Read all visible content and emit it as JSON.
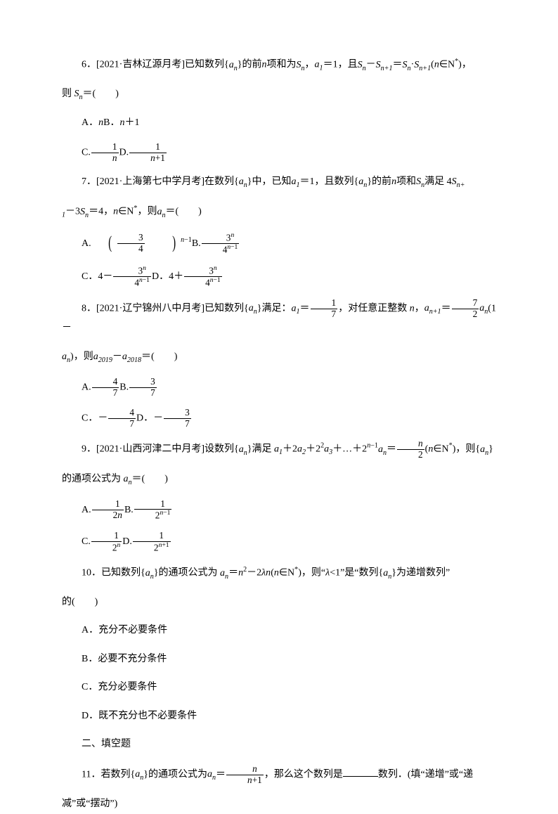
{
  "q6": {
    "stem": "6．[2021·吉林辽源月考]已知数列{<span class=\"italic\">a<sub>n</sub></span>}的前<span class=\"italic\">n</span>项和为<span class=\"italic\">S<sub>n</sub></span>，<span class=\"italic\">a</span><sub>1</sub>＝1，且<span class=\"italic\">S<sub>n</sub></span>－<span class=\"italic\">S<sub>n+1</sub></span>＝<span class=\"italic\">S<sub>n</sub></span>·<span class=\"italic\">S<sub>n+1</sub></span>(<span class=\"italic\">n</span>∈N<sup>*</sup>)，",
    "stem2": "则 <span class=\"italic\">S<sub>n</sub></span>＝(　　)",
    "optA": "A．<span class=\"italic\">n</span>B．<span class=\"italic\">n</span>＋1",
    "optC": "C.<span class=\"frac\"><span class=\"num\">1</span><span class=\"den italic\">n</span></span>D.<span class=\"frac\"><span class=\"num\">1</span><span class=\"den\"><span class=\"italic\">n</span>+1</span></span>"
  },
  "q7": {
    "stem": "7．[2021·上海第七中学月考]在数列{<span class=\"italic\">a<sub>n</sub></span>}中，已知<span class=\"italic\">a</span><sub>1</sub>＝1，且数列{<span class=\"italic\">a<sub>n</sub></span>}的前<span class=\"italic\">n</span>项和<span class=\"italic\">S<sub>n</sub></span>满足 4<span class=\"italic\">S<sub>n+</sub></span>",
    "stem2": "<sub>1</sub>－3<span class=\"italic\">S<sub>n</sub></span>＝4，<span class=\"italic\">n</span>∈N<sup>*</sup>，则<span class=\"italic\">a<sub>n</sub></span>＝(　　)",
    "optA": "A.<span class=\"lparen\">(</span><span class=\"frac\"><span class=\"num\">3</span><span class=\"den\">4</span></span>　<span class=\"lparen\">)</span><sup><span class=\"italic\">n</span>−1</sup>B.<span class=\"frac\"><span class=\"num\">3<sup class=\"italic\">n</sup></span><span class=\"den\">4<sup><span class=\"italic\">n</span>−1</sup></span></span>",
    "optC": "C．4－<span class=\"frac\"><span class=\"num\">3<sup class=\"italic\">n</sup></span><span class=\"den\">4<sup><span class=\"italic\">n</span>−1</sup></span></span>D．4＋<span class=\"frac\"><span class=\"num\">3<sup class=\"italic\">n</sup></span><span class=\"den\">4<sup><span class=\"italic\">n</span>−1</sup></span></span>"
  },
  "q8": {
    "stem": "8．[2021·辽宁锦州八中月考]已知数列{<span class=\"italic\">a<sub>n</sub></span>}满足：<span class=\"italic\">a</span><sub>1</sub>＝<span class=\"frac\"><span class=\"num\">1</span><span class=\"den\">7</span></span>，对任意正整数 <span class=\"italic\">n</span>，<span class=\"italic\">a<sub>n+1</sub></span>＝<span class=\"frac\"><span class=\"num\">7</span><span class=\"den\">2</span></span><span class=\"italic\">a<sub>n</sub></span>(1－",
    "stem2": "<span class=\"italic\">a<sub>n</sub></span>)，则<span class=\"italic\">a</span><sub>2019</sub>－<span class=\"italic\">a</span><sub>2018</sub>＝(　　)",
    "optA": "A.<span class=\"frac\"><span class=\"num\">4</span><span class=\"den\">7</span></span>B.<span class=\"frac\"><span class=\"num\">3</span><span class=\"den\">7</span></span>",
    "optC": "C．－<span class=\"frac\"><span class=\"num\">4</span><span class=\"den\">7</span></span>D．－<span class=\"frac\"><span class=\"num\">3</span><span class=\"den\">7</span></span>"
  },
  "q9": {
    "stem": "9．[2021·山西河津二中月考]设数列{<span class=\"italic\">a<sub>n</sub></span>}满足 <span class=\"italic\">a</span><sub>1</sub>＋2<span class=\"italic\">a</span><sub>2</sub>＋2<sup>2</sup><span class=\"italic\">a</span><sub>3</sub>＋…＋2<sup><span class=\"italic\">n</span>−1</sup><span class=\"italic\">a<sub>n</sub></span>＝<span class=\"frac\"><span class=\"num italic\">n</span><span class=\"den\">2</span></span>(<span class=\"italic\">n</span>∈N<sup>*</sup>)，则{<span class=\"italic\">a<sub>n</sub></span>}",
    "stem2": "的通项公式为 <span class=\"italic\">a<sub>n</sub></span>＝(　　)",
    "optA": "A.<span class=\"frac\"><span class=\"num\">1</span><span class=\"den\">2<span class=\"italic\">n</span></span></span>B.<span class=\"frac\"><span class=\"num\">1</span><span class=\"den\">2<sup><span class=\"italic\">n</span>−1</sup></span></span>",
    "optC": "C.<span class=\"frac\"><span class=\"num\">1</span><span class=\"den\">2<sup class=\"italic\">n</sup></span></span>D.<span class=\"frac\"><span class=\"num\">1</span><span class=\"den\">2<sup><span class=\"italic\">n</span>+1</sup></span></span>"
  },
  "q10": {
    "stem": "10．已知数列{<span class=\"italic\">a<sub>n</sub></span>}的通项公式为 <span class=\"italic\">a<sub>n</sub></span>＝<span class=\"italic\">n</span><sup>2</sup>－2<span class=\"italic\">λn</span>(<span class=\"italic\">n</span>∈N<sup>*</sup>)，则&ldquo;<span class=\"italic\">λ</span>&lt;1&rdquo;是&ldquo;数列{<span class=\"italic\">a<sub>n</sub></span>}为递增数列&rdquo;",
    "stem2": "的(　　)",
    "optA": "A．充分不必要条件",
    "optB": "B．必要不充分条件",
    "optC": "C．充分必要条件",
    "optD": "D．既不充分也不必要条件"
  },
  "section2": "二、填空题",
  "q11": {
    "stem": "11．若数列{<span class=\"italic\">a<sub>n</sub></span>}的通项公式为<span class=\"italic\">a<sub>n</sub></span>＝<span class=\"frac\"><span class=\"num italic\">n</span><span class=\"den\"><span class=\"italic\">n</span>+1</span></span>，那么这个数列是<span class=\"blank\"></span>数列．(填&ldquo;递增&rdquo;或&ldquo;递",
    "stem2": "减&rdquo;或&ldquo;摆动&rdquo;)"
  }
}
